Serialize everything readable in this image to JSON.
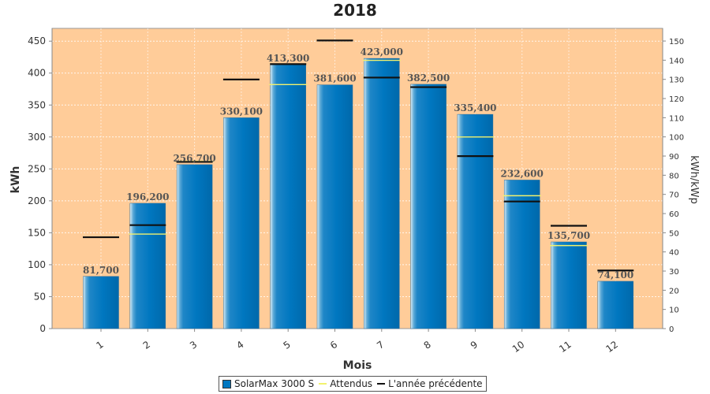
{
  "chart_data": {
    "type": "bar",
    "title": "2018",
    "xlabel": "Mois",
    "ylabel": "kWh",
    "y2label": "kWh/kWp",
    "ylim": [
      0,
      470
    ],
    "y2lim": [
      0,
      156.6
    ],
    "yticks": [
      0,
      50,
      100,
      150,
      200,
      250,
      300,
      350,
      400,
      450
    ],
    "y2ticks": [
      0,
      10,
      20,
      30,
      40,
      50,
      60,
      70,
      80,
      90,
      100,
      110,
      120,
      130,
      140,
      150
    ],
    "categories": [
      "1",
      "2",
      "3",
      "4",
      "5",
      "6",
      "7",
      "8",
      "9",
      "10",
      "11",
      "12"
    ],
    "series": [
      {
        "name": "SolarMax 3000 S",
        "kind": "bar",
        "color": "#0077c0",
        "values": [
          81.7,
          196.2,
          256.7,
          330.1,
          413.3,
          381.6,
          423.0,
          382.5,
          335.4,
          232.6,
          135.7,
          74.1
        ],
        "labels": [
          "81,700",
          "196,200",
          "256,700",
          "330,100",
          "413,300",
          "381,600",
          "423,000",
          "382,500",
          "335,400",
          "232,600",
          "135,700",
          "74,100"
        ]
      },
      {
        "name": "Attendus",
        "kind": "marker",
        "color": "#f2f26e",
        "values": [
          null,
          148,
          262,
          null,
          382,
          null,
          420,
          null,
          300,
          208,
          130,
          null
        ]
      },
      {
        "name": "L'année précédente",
        "kind": "marker",
        "color": "#111111",
        "values": [
          143,
          162,
          261,
          390,
          414,
          451,
          393,
          378,
          270,
          199,
          161,
          91
        ]
      }
    ],
    "plot_background": "#ffcc99",
    "grid": true,
    "legend": "bottom-center"
  }
}
